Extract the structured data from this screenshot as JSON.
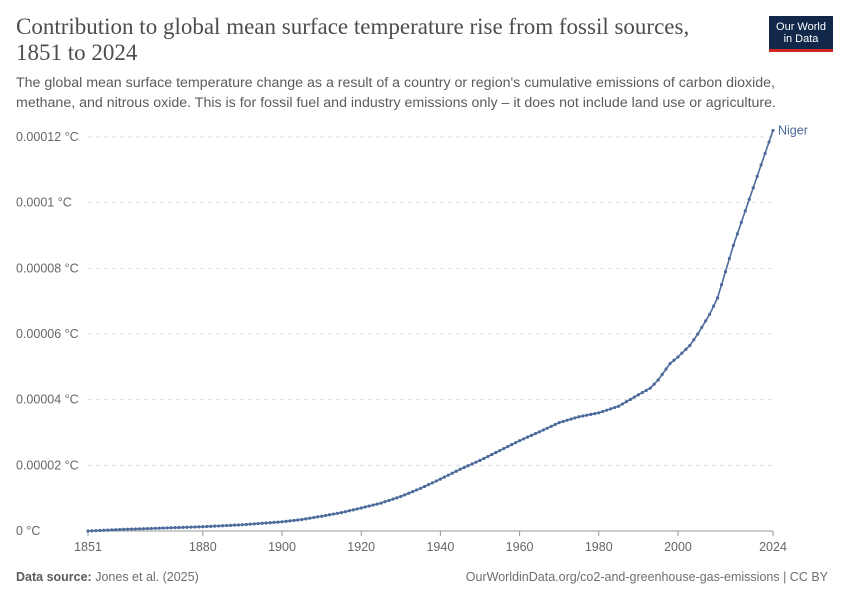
{
  "header": {
    "title": "Contribution to global mean surface temperature rise from fossil sources, 1851 to 2024",
    "subtitle": "The global mean surface temperature change as a result of a country or region's cumulative emissions of carbon dioxide, methane, and nitrous oxide. This is for fossil fuel and industry emissions only – it does not include land use or agriculture.",
    "logo_line1": "Our World",
    "logo_line2": "in Data"
  },
  "footer": {
    "source_label": "Data source:",
    "source_text": "Jones et al. (2025)",
    "url_text": "OurWorldinData.org/co2-and-greenhouse-gas-emissions | CC BY"
  },
  "colors": {
    "series": "#4c6a9c",
    "grid": "#dddddd",
    "axis": "#666666",
    "logo_bg": "#12284a",
    "logo_accent": "#ce261e"
  },
  "chart_data": {
    "type": "line",
    "xlim": [
      1851,
      2024
    ],
    "ylim": [
      0,
      0.00012
    ],
    "x_ticks": [
      1851,
      1880,
      1900,
      1920,
      1940,
      1960,
      1980,
      2000,
      2024
    ],
    "x_tick_labels": [
      "1851",
      "1880",
      "1900",
      "1920",
      "1940",
      "1960",
      "1980",
      "2000",
      "2024"
    ],
    "y_ticks": [
      0,
      2e-05,
      4e-05,
      6e-05,
      8e-05,
      0.0001,
      0.00012
    ],
    "y_tick_labels": [
      "0 °C",
      "0.00002 °C",
      "0.00004 °C",
      "0.00006 °C",
      "0.00008 °C",
      "0.0001 °C",
      "0.00012 °C"
    ],
    "grid": true,
    "markers": true,
    "series": [
      {
        "name": "Niger",
        "color": "#4c6a9c",
        "points": [
          [
            1851,
            0
          ],
          [
            1860,
            5e-07
          ],
          [
            1870,
            9e-07
          ],
          [
            1880,
            1.3e-06
          ],
          [
            1890,
            1.9e-06
          ],
          [
            1900,
            2.8e-06
          ],
          [
            1905,
            3.5e-06
          ],
          [
            1910,
            4.5e-06
          ],
          [
            1915,
            5.6e-06
          ],
          [
            1920,
            7e-06
          ],
          [
            1925,
            8.5e-06
          ],
          [
            1930,
            1.05e-05
          ],
          [
            1935,
            1.3e-05
          ],
          [
            1940,
            1.58e-05
          ],
          [
            1945,
            1.88e-05
          ],
          [
            1950,
            2.15e-05
          ],
          [
            1955,
            2.45e-05
          ],
          [
            1960,
            2.75e-05
          ],
          [
            1965,
            3.02e-05
          ],
          [
            1970,
            3.3e-05
          ],
          [
            1975,
            3.48e-05
          ],
          [
            1980,
            3.6e-05
          ],
          [
            1985,
            3.8e-05
          ],
          [
            1990,
            4.15e-05
          ],
          [
            1993,
            4.35e-05
          ],
          [
            1995,
            4.6e-05
          ],
          [
            1998,
            5.1e-05
          ],
          [
            2000,
            5.3e-05
          ],
          [
            2003,
            5.65e-05
          ],
          [
            2005,
            6e-05
          ],
          [
            2008,
            6.6e-05
          ],
          [
            2010,
            7.1e-05
          ],
          [
            2012,
            7.9e-05
          ],
          [
            2014,
            8.7e-05
          ],
          [
            2016,
            9.4e-05
          ],
          [
            2018,
            0.000101
          ],
          [
            2020,
            0.000108
          ],
          [
            2022,
            0.000115
          ],
          [
            2024,
            0.000122
          ]
        ]
      }
    ]
  }
}
